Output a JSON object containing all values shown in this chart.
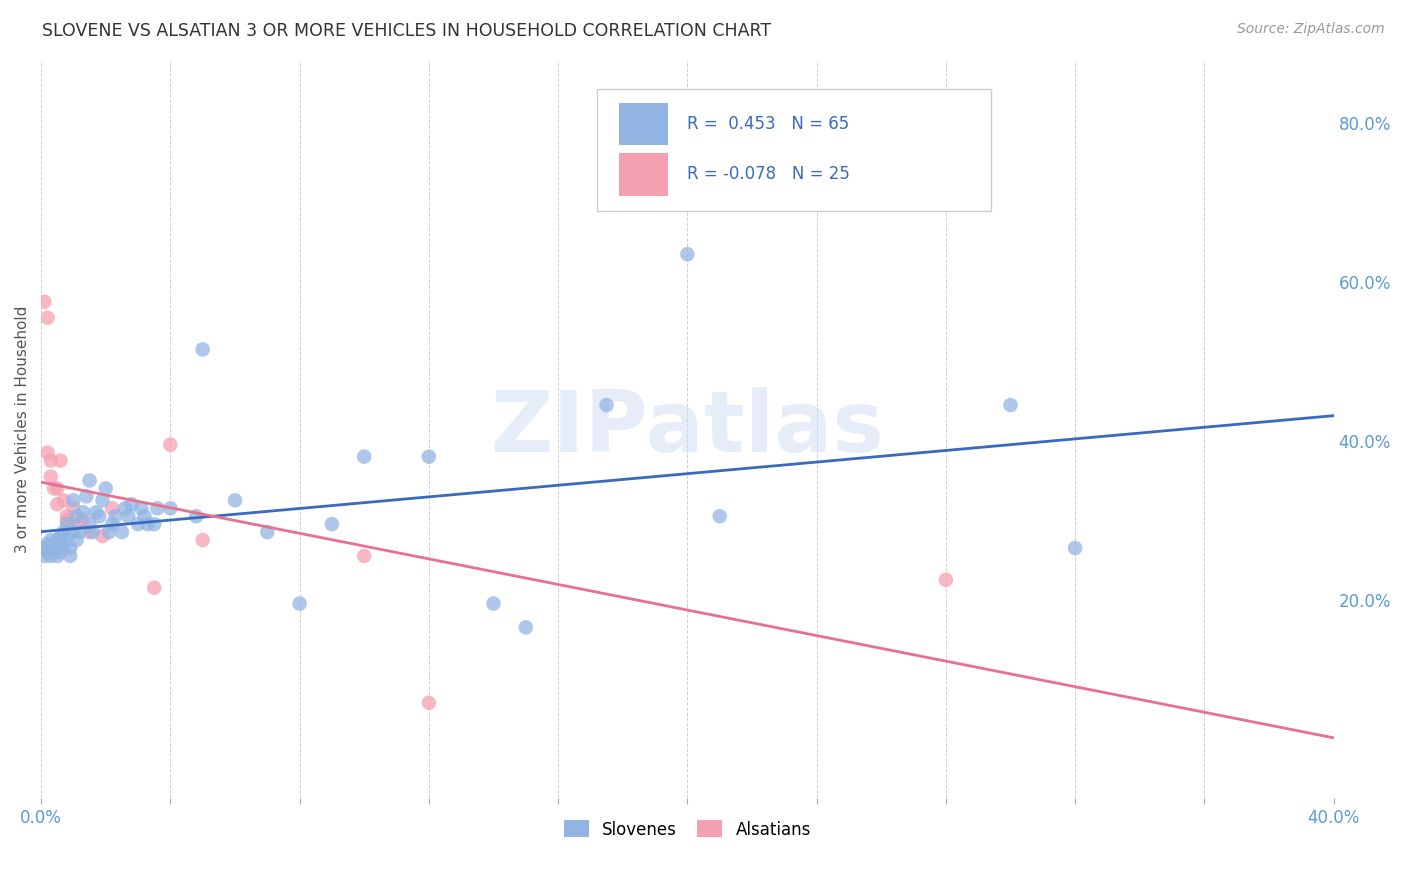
{
  "title": "SLOVENE VS ALSATIAN 3 OR MORE VEHICLES IN HOUSEHOLD CORRELATION CHART",
  "source": "Source: ZipAtlas.com",
  "ylabel": "3 or more Vehicles in Household",
  "watermark": "ZIPatlas",
  "xlim": [
    0.0,
    0.4
  ],
  "ylim": [
    -0.05,
    0.88
  ],
  "xticks": [
    0.0,
    0.04,
    0.08,
    0.12,
    0.16,
    0.2,
    0.24,
    0.28,
    0.32,
    0.36,
    0.4
  ],
  "ytick_labels_right": [
    "20.0%",
    "40.0%",
    "60.0%",
    "80.0%"
  ],
  "ytick_vals_right": [
    0.2,
    0.4,
    0.6,
    0.8
  ],
  "slovene_R": 0.453,
  "slovene_N": 65,
  "alsatian_R": -0.078,
  "alsatian_N": 25,
  "slovene_color": "#92b4e3",
  "alsatian_color": "#f5a0b0",
  "slovene_line_color": "#3a6abf",
  "alsatian_line_color": "#e87090",
  "background_color": "#ffffff",
  "grid_color": "#cccccc",
  "title_color": "#333333",
  "slovene_x": [
    0.001,
    0.001,
    0.002,
    0.002,
    0.003,
    0.003,
    0.003,
    0.004,
    0.004,
    0.004,
    0.005,
    0.005,
    0.005,
    0.006,
    0.006,
    0.006,
    0.007,
    0.007,
    0.008,
    0.008,
    0.009,
    0.009,
    0.01,
    0.01,
    0.011,
    0.011,
    0.012,
    0.013,
    0.014,
    0.015,
    0.015,
    0.016,
    0.017,
    0.018,
    0.019,
    0.02,
    0.021,
    0.022,
    0.023,
    0.025,
    0.026,
    0.027,
    0.028,
    0.03,
    0.031,
    0.032,
    0.033,
    0.035,
    0.036,
    0.04,
    0.048,
    0.05,
    0.06,
    0.07,
    0.08,
    0.09,
    0.1,
    0.12,
    0.14,
    0.15,
    0.175,
    0.2,
    0.21,
    0.3,
    0.32
  ],
  "slovene_y": [
    0.255,
    0.265,
    0.27,
    0.26,
    0.275,
    0.265,
    0.255,
    0.27,
    0.265,
    0.26,
    0.275,
    0.265,
    0.255,
    0.28,
    0.27,
    0.26,
    0.285,
    0.27,
    0.295,
    0.275,
    0.265,
    0.255,
    0.285,
    0.325,
    0.305,
    0.275,
    0.285,
    0.31,
    0.33,
    0.35,
    0.295,
    0.285,
    0.31,
    0.305,
    0.325,
    0.34,
    0.285,
    0.295,
    0.305,
    0.285,
    0.315,
    0.305,
    0.32,
    0.295,
    0.315,
    0.305,
    0.295,
    0.295,
    0.315,
    0.315,
    0.305,
    0.515,
    0.325,
    0.285,
    0.195,
    0.295,
    0.38,
    0.38,
    0.195,
    0.165,
    0.445,
    0.635,
    0.305,
    0.445,
    0.265
  ],
  "alsatian_x": [
    0.001,
    0.002,
    0.002,
    0.003,
    0.003,
    0.004,
    0.005,
    0.005,
    0.006,
    0.007,
    0.008,
    0.008,
    0.009,
    0.01,
    0.011,
    0.013,
    0.015,
    0.019,
    0.022,
    0.035,
    0.04,
    0.05,
    0.1,
    0.12,
    0.28
  ],
  "alsatian_y": [
    0.575,
    0.555,
    0.385,
    0.375,
    0.355,
    0.34,
    0.32,
    0.34,
    0.375,
    0.325,
    0.3,
    0.305,
    0.295,
    0.315,
    0.295,
    0.3,
    0.285,
    0.28,
    0.315,
    0.215,
    0.395,
    0.275,
    0.255,
    0.07,
    0.225
  ]
}
